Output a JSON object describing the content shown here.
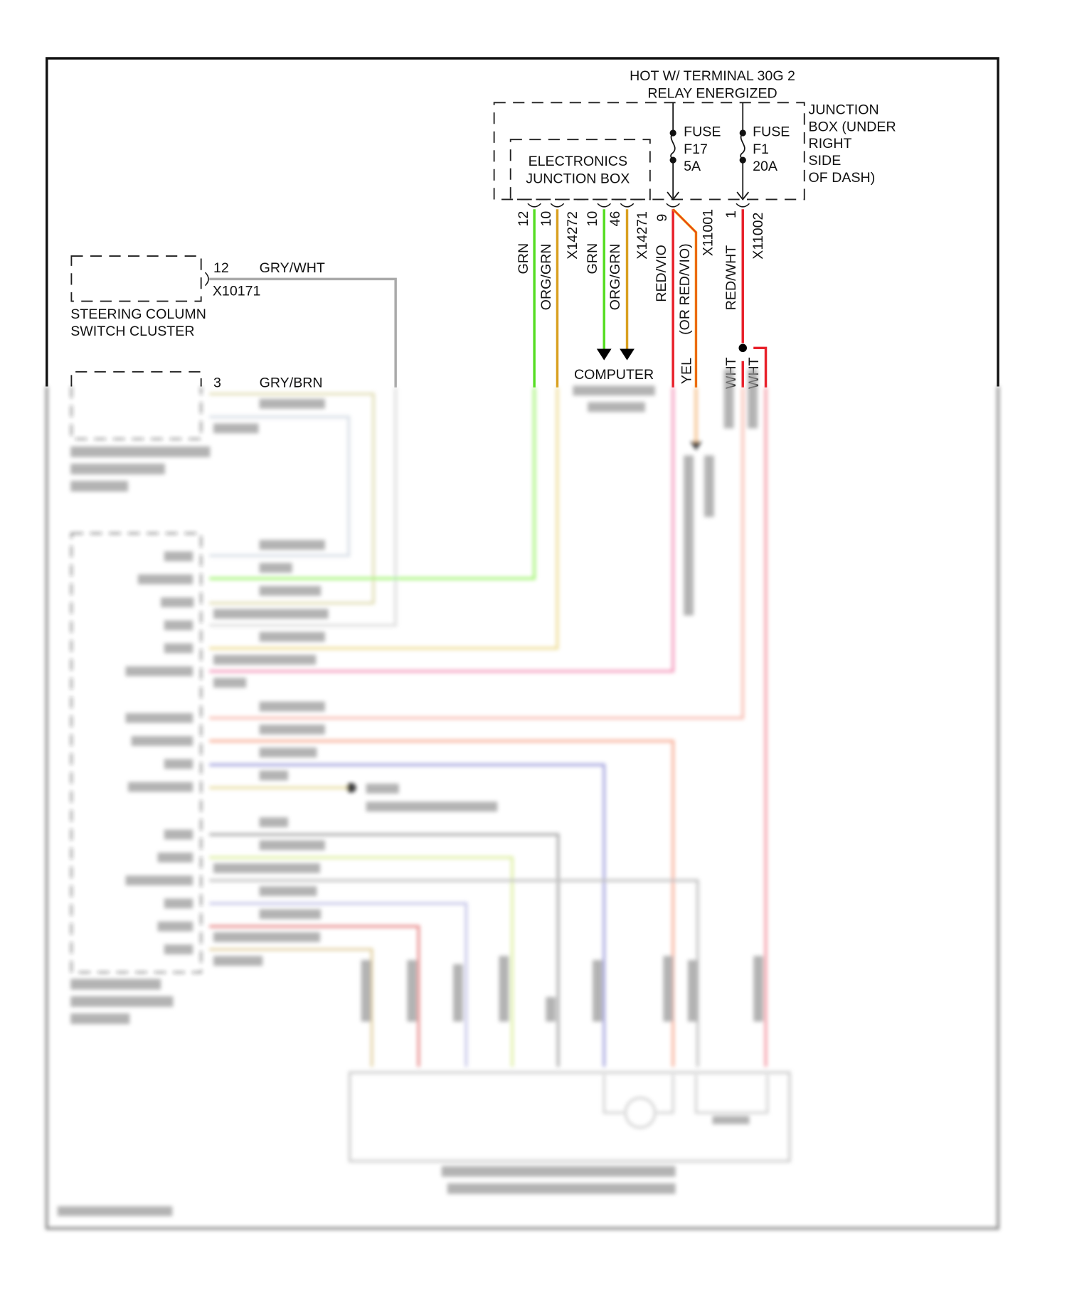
{
  "power": {
    "line1": "HOT W/ TERMINAL 30G 2",
    "line2": "RELAY ENERGIZED"
  },
  "junction_box": {
    "lines": [
      "JUNCTION",
      "BOX (UNDER",
      "RIGHT",
      "SIDE",
      "OF DASH)"
    ]
  },
  "ejb": {
    "line1": "ELECTRONICS",
    "line2": "JUNCTION BOX"
  },
  "fuses": [
    {
      "l1": "FUSE",
      "l2": "F17",
      "l3": "5A"
    },
    {
      "l1": "FUSE",
      "l2": "F1",
      "l3": "20A"
    }
  ],
  "wires_top": {
    "c1_pin": "12",
    "c1_color": "GRN",
    "c2_pin": "10",
    "c2_color": "ORG/GRN",
    "conn_a": "X14272",
    "c3_pin": "10",
    "c3_color": "GRN",
    "c4_pin": "46",
    "c4_color": "ORG/GRN",
    "conn_b": "X14271",
    "c5_pin": "9",
    "c5_color": "RED/VIO",
    "c5_alt": "(OR RED/VIO)",
    "conn_c": "X11001",
    "c6_pin": "1",
    "c6_color": "RED/WHT",
    "conn_d": "X11002",
    "frag_yel": "YEL",
    "frag_wht1": "WHT",
    "frag_wht2": "WHT"
  },
  "computer": {
    "label": "COMPUTER"
  },
  "switch_cluster": {
    "pin": "12",
    "wire": "GRY/WHT",
    "connector": "X10171",
    "name1": "STEERING COLUMN",
    "name2": "SWITCH CLUSTER"
  },
  "adjust_switch": {
    "pin": "3",
    "wire": "GRY/BRN"
  },
  "colors": {
    "grn": "#55dd22",
    "org_grn": "#d9a020",
    "red": "#e8202a",
    "yel": "#f0c000",
    "gray": "#aaaaaa",
    "frame": "#111111"
  }
}
